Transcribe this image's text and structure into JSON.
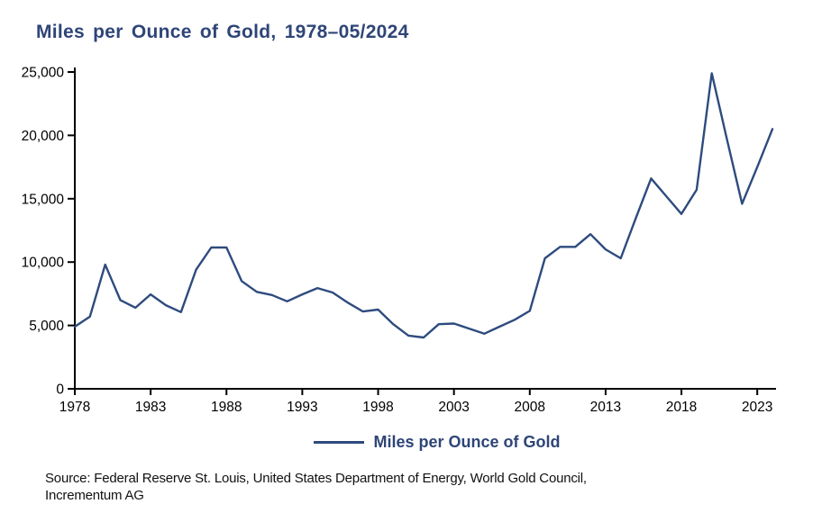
{
  "page": {
    "background": "#ffffff"
  },
  "header": {
    "title": "Miles per Ounce of Gold, 1978–05/2024",
    "title_color": "#2e4577"
  },
  "chart_data": {
    "type": "line",
    "title": "Miles per Ounce of Gold, 1978–05/2024",
    "xlabel": "",
    "ylabel": "",
    "grid": false,
    "legend_position": "bottom",
    "legend": [
      "Miles per Ounce of Gold"
    ],
    "line_color": "#2e4b7e",
    "axis_color": "#000000",
    "xlim": [
      1978,
      2024
    ],
    "ylim": [
      0,
      25000
    ],
    "x_ticks": [
      {
        "value": 1978,
        "label": "1978"
      },
      {
        "value": 1983,
        "label": "1983"
      },
      {
        "value": 1988,
        "label": "1988"
      },
      {
        "value": 1993,
        "label": "1993"
      },
      {
        "value": 1998,
        "label": "1998"
      },
      {
        "value": 2003,
        "label": "2003"
      },
      {
        "value": 2008,
        "label": "2008"
      },
      {
        "value": 2013,
        "label": "2013"
      },
      {
        "value": 2018,
        "label": "2018"
      },
      {
        "value": 2023,
        "label": "2023"
      }
    ],
    "y_ticks": [
      {
        "value": 0,
        "label": "0"
      },
      {
        "value": 5000,
        "label": "5,000"
      },
      {
        "value": 10000,
        "label": "10,000"
      },
      {
        "value": 15000,
        "label": "15,000"
      },
      {
        "value": 20000,
        "label": "20,000"
      },
      {
        "value": 25000,
        "label": "25,000"
      }
    ],
    "series": [
      {
        "name": "Miles per Ounce of Gold",
        "x": [
          1978,
          1979,
          1980,
          1981,
          1982,
          1983,
          1984,
          1985,
          1986,
          1987,
          1988,
          1989,
          1990,
          1991,
          1992,
          1993,
          1994,
          1995,
          1996,
          1997,
          1998,
          1999,
          2000,
          2001,
          2002,
          2003,
          2004,
          2005,
          2006,
          2007,
          2008,
          2009,
          2010,
          2011,
          2012,
          2013,
          2014,
          2015,
          2016,
          2017,
          2018,
          2019,
          2020,
          2021,
          2022,
          2023,
          2024
        ],
        "values": [
          4900,
          5700,
          9800,
          7000,
          6400,
          7450,
          6600,
          6050,
          9400,
          11150,
          11150,
          8500,
          7650,
          7400,
          6900,
          7450,
          7950,
          7600,
          6800,
          6100,
          6250,
          5100,
          4200,
          4050,
          5100,
          5150,
          4750,
          4350,
          4900,
          5450,
          6150,
          10300,
          11200,
          11200,
          12200,
          11000,
          10300,
          13500,
          16600,
          15200,
          13800,
          15700,
          24900,
          19700,
          14600,
          17500,
          20500
        ]
      }
    ]
  },
  "legend": {
    "label": "Miles per Ounce of Gold"
  },
  "footer": {
    "line1": "Source: Federal Reserve St. Louis, United States Department of Energy, World Gold Council,",
    "line2": "Incrementum AG"
  }
}
